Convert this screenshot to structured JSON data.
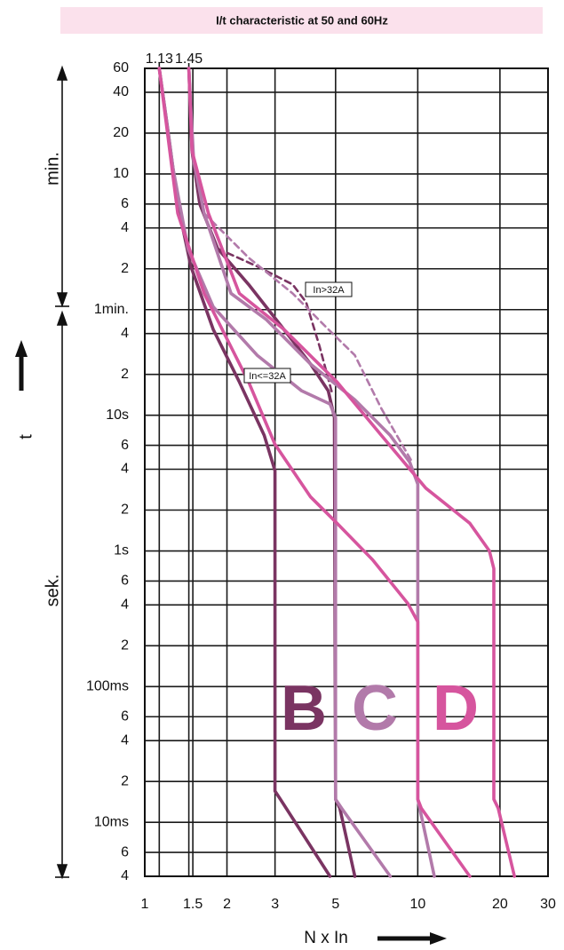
{
  "chart_data": {
    "type": "line",
    "title": "I/t characteristic at 50 and 60Hz",
    "x_label": "N x In",
    "y_label": "t",
    "range_labels": [
      "min.",
      "sek."
    ],
    "annotations": [
      "In>32A",
      "In<=32A"
    ],
    "xlog": true,
    "ylog": true,
    "grid": true,
    "xlim": [
      1,
      30
    ],
    "ylim": [
      0.004,
      3600
    ],
    "xticks": [
      1,
      1.5,
      2,
      3,
      5,
      10,
      20,
      30
    ],
    "x2ticks": [
      1.13,
      1.45
    ],
    "yticks": [
      {
        "value": 3600,
        "label": "60"
      },
      {
        "value": 2400,
        "label": "40"
      },
      {
        "value": 1200,
        "label": "20"
      },
      {
        "value": 600,
        "label": "10"
      },
      {
        "value": 360,
        "label": "6"
      },
      {
        "value": 240,
        "label": "4"
      },
      {
        "value": 120,
        "label": "2"
      },
      {
        "value": 60,
        "label": "1min."
      },
      {
        "value": 40,
        "label": "4"
      },
      {
        "value": 20,
        "label": "2"
      },
      {
        "value": 10,
        "label": "10s"
      },
      6,
      4,
      2,
      {
        "value": 1,
        "label": "1s"
      },
      {
        "value": 0.6,
        "label": "6"
      },
      {
        "value": 0.4,
        "label": "4"
      },
      {
        "value": 0.2,
        "label": "2"
      },
      {
        "value": 0.1,
        "label": "100ms"
      },
      {
        "value": 0.06,
        "label": "6"
      },
      {
        "value": 0.04,
        "label": "4"
      },
      {
        "value": 0.02,
        "label": "2"
      },
      {
        "value": 0.01,
        "label": "10ms"
      },
      {
        "value": 0.006,
        "label": "6"
      },
      {
        "value": 0.004,
        "label": "4"
      }
    ],
    "groups": [
      {
        "name": "B",
        "color": "#7a3462",
        "curves": [
          {
            "dash": false,
            "x": [
              1.13,
              1.22,
              1.32,
              1.475,
              1.78,
              2.22,
              2.74,
              3.0,
              3.0,
              3.14,
              4.77
            ],
            "t": [
              3600,
              1200,
              360,
              125,
              43,
              17.6,
              7.1,
              3.9,
              0.017,
              0.0148,
              0.004
            ]
          },
          {
            "dash": false,
            "x": [
              1.45,
              1.49,
              1.59,
              1.85,
              2.4,
              3.23,
              4.05,
              4.7,
              4.95,
              5.0,
              5.18,
              5.88
            ],
            "t": [
              3600,
              885,
              360,
              169,
              92,
              43,
              23.8,
              15.1,
              9.6,
              0.0148,
              0.0127,
              0.004
            ]
          },
          {
            "dash": true,
            "x": [
              1.85,
              2.58,
              3.48,
              3.9,
              4.37,
              4.88
            ],
            "t": [
              169,
              125,
              92,
              68,
              32,
              14
            ]
          }
        ]
      },
      {
        "name": "C",
        "color": "#b27aaa",
        "curves": [
          {
            "dash": false,
            "x": [
              1.13,
              1.27,
              1.44,
              1.78,
              2.58,
              3.76,
              4.77,
              5.0,
              5.0,
              5.26,
              7.93
            ],
            "t": [
              3600,
              655,
              169,
              63,
              27.7,
              15.1,
              12.1,
              9.6,
              0.0148,
              0.0127,
              0.004
            ]
          },
          {
            "dash": false,
            "x": [
              1.45,
              1.51,
              1.65,
              2.07,
              2.79,
              4.05,
              5.88,
              7.93,
              9.35,
              10,
              10,
              11.5
            ],
            "t": [
              3600,
              762,
              308,
              79,
              50.6,
              23.8,
              13,
              7.1,
              4.5,
              3.1,
              0.0148,
              0.004
            ]
          },
          {
            "dash": true,
            "x": [
              1.65,
              2.4,
              3.48,
              4.7,
              5.88,
              7.36,
              9.55
            ],
            "t": [
              308,
              145,
              79,
              43,
              27.7,
              11.2,
              4.5
            ]
          }
        ]
      },
      {
        "name": "D",
        "color": "#d6559e",
        "curves": [
          {
            "dash": false,
            "x": [
              1.13,
              1.32,
              1.65,
              2.4,
              3.0,
              4.05,
              5.06,
              6.83,
              9.2,
              10,
              10,
              10.3,
              15.5
            ],
            "t": [
              3600,
              308,
              79,
              17.6,
              6.1,
              2.5,
              1.6,
              0.86,
              0.41,
              0.3,
              0.0148,
              0.0127,
              0.004
            ]
          },
          {
            "dash": false,
            "x": [
              1.45,
              1.49,
              1.71,
              2.22,
              3.23,
              5.06,
              7.36,
              10.7,
              15.5,
              18.3,
              19,
              19,
              19.7,
              22.6
            ],
            "t": [
              3600,
              885,
              308,
              79,
              43,
              17.6,
              7.1,
              2.9,
              1.6,
              1.0,
              0.74,
              0.0148,
              0.0127,
              0.004
            ]
          }
        ]
      }
    ]
  }
}
